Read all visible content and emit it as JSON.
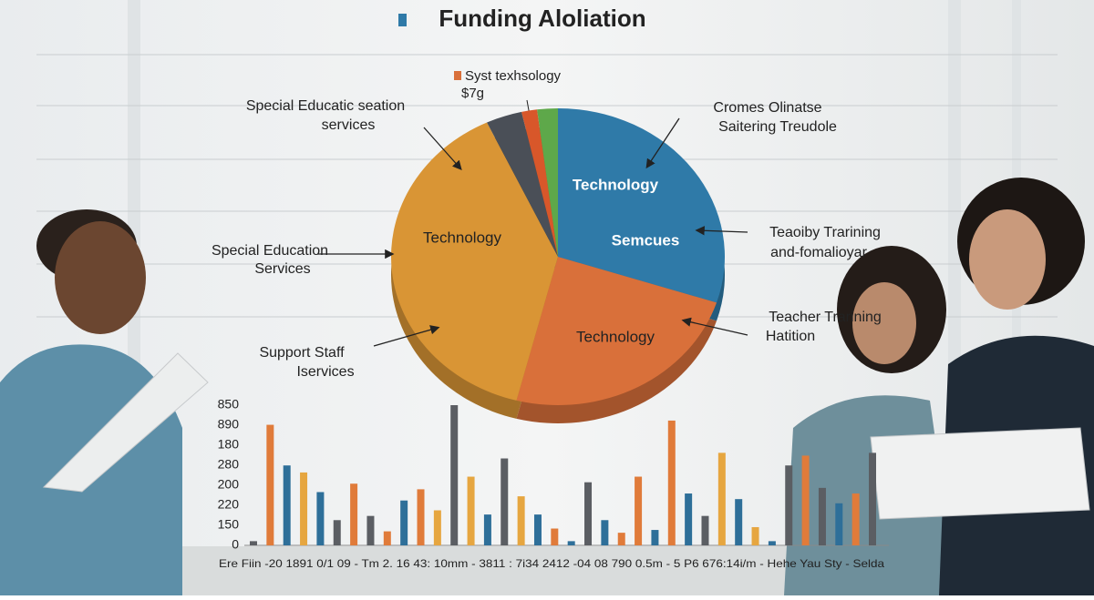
{
  "chart_data": [
    {
      "type": "pie",
      "title": "Funding Aloliation",
      "legend_label": [
        "Syst texhsology",
        "$7g"
      ],
      "values": [
        30,
        24,
        39,
        3.5,
        1.5,
        2
      ],
      "colors": [
        "#2f7aa8",
        "#d9703a",
        "#d99535",
        "#4a4f57",
        "#d8572a",
        "#5ea84a"
      ],
      "slice_labels": [
        [
          "Technology",
          "Semcues"
        ],
        [
          "Technology"
        ],
        [
          "Technology"
        ],
        null,
        null,
        null
      ],
      "annotations": [
        {
          "lines": [
            "Special  Educatic seation",
            "services"
          ]
        },
        {
          "lines": [
            "Cromes Olinatse",
            "Saitering Treudole"
          ]
        },
        {
          "lines": [
            "Special Education",
            "Services"
          ]
        },
        {
          "lines": [
            "Teaoiby Trarining",
            "and-fomalioyar"
          ]
        },
        {
          "lines": [
            "Support Staff",
            "Iservices"
          ]
        },
        {
          "lines": [
            "Teacher Trarining",
            "Hatition"
          ]
        }
      ]
    },
    {
      "type": "bar",
      "y_axis_labels": [
        "850",
        "890",
        "180",
        "280",
        "200",
        "220",
        "150",
        "0"
      ],
      "x_axis_text": "Ere Fiin -20 1891 0/1 09  -  Tm 2. 16 43: 10mm  -  3811 : 7i34 2412 -04 08 790 0.5m  -  5 P6 676:14i/m  -  Hehe Yau Sty  -  Selda",
      "ylim": [
        0,
        100
      ],
      "values": [
        3,
        86,
        57,
        52,
        38,
        18,
        44,
        21,
        10,
        32,
        40,
        25,
        100,
        49,
        22,
        62,
        35,
        22,
        12,
        3,
        45,
        18,
        9,
        49,
        11,
        89,
        37,
        21,
        66,
        33,
        13,
        3,
        57,
        64,
        41,
        30,
        37,
        66
      ],
      "colors": [
        "#5b5e63",
        "#e07b3a",
        "#2e6f99",
        "#e6a640",
        "#2e6f99",
        "#5b5e63",
        "#e07b3a",
        "#5b5e63",
        "#e07b3a",
        "#2e6f99",
        "#e07b3a",
        "#e6a640",
        "#5b5e63",
        "#e6a640",
        "#2e6f99",
        "#5b5e63",
        "#e6a640",
        "#2e6f99",
        "#e07b3a",
        "#2e6f99",
        "#5b5e63",
        "#2e6f99",
        "#e07b3a",
        "#e07b3a",
        "#2e6f99",
        "#e07b3a",
        "#2e6f99",
        "#5b5e63",
        "#e6a640",
        "#2e6f99",
        "#e6a640",
        "#2e6f99",
        "#5b5e63",
        "#e07b3a",
        "#5b5e63",
        "#2e6f99",
        "#e07b3a",
        "#5b5e63"
      ]
    }
  ]
}
